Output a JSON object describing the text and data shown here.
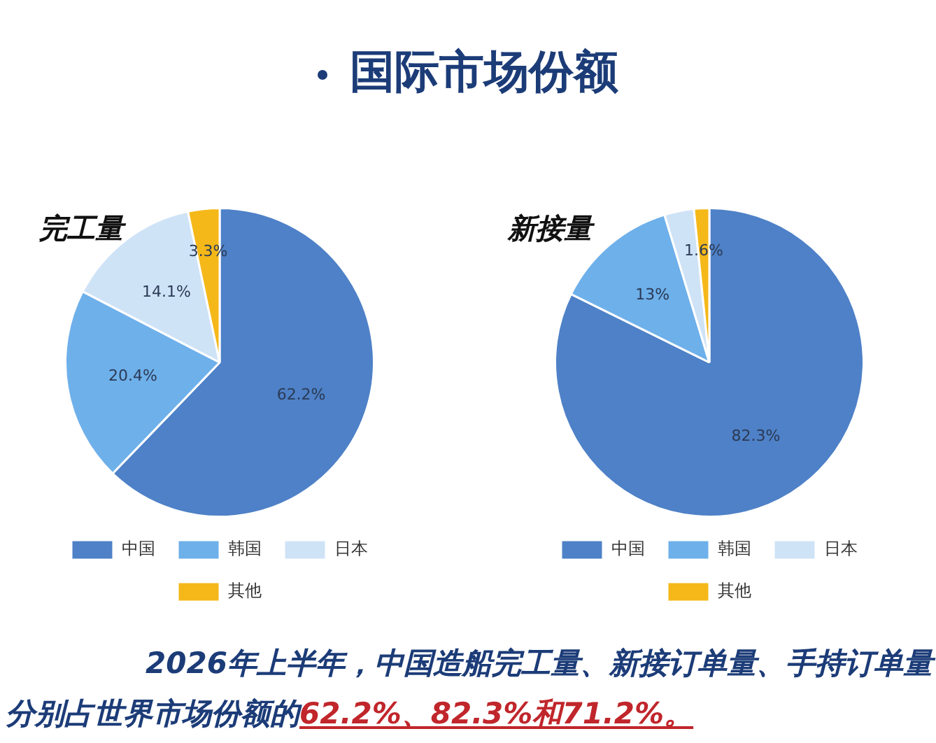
{
  "chart_data": [
    {
      "type": "other",
      "title": "国际市场份额"
    },
    {
      "type": "pie",
      "title": "完工量",
      "categories": [
        "中国",
        "韩国",
        "日本",
        "其他"
      ],
      "values": [
        62.2,
        20.4,
        14.1,
        3.3
      ],
      "colors": [
        "#4e81c7",
        "#6eb0ea",
        "#cfe3f7",
        "#f5b819"
      ],
      "value_labels": [
        "62.2%",
        "20.4%",
        "14.1%",
        "3.3%"
      ],
      "legend": "bottom"
    },
    {
      "type": "pie",
      "title": "新接量",
      "categories": [
        "中国",
        "韩国",
        "日本",
        "其他"
      ],
      "values": [
        82.3,
        13,
        3.1,
        1.6
      ],
      "colors": [
        "#4e81c7",
        "#6eb0ea",
        "#cfe3f7",
        "#f5b819"
      ],
      "value_labels": [
        "82.3%",
        "13%",
        null,
        "1.6%"
      ],
      "legend": "bottom"
    },
    {
      "type": "other",
      "annotations": [
        "2026年上半年，中国造船完工量、新接订单量、手持订单量分别占世界市场份额的",
        "62.2%、82.3%和71.2%。"
      ]
    }
  ]
}
